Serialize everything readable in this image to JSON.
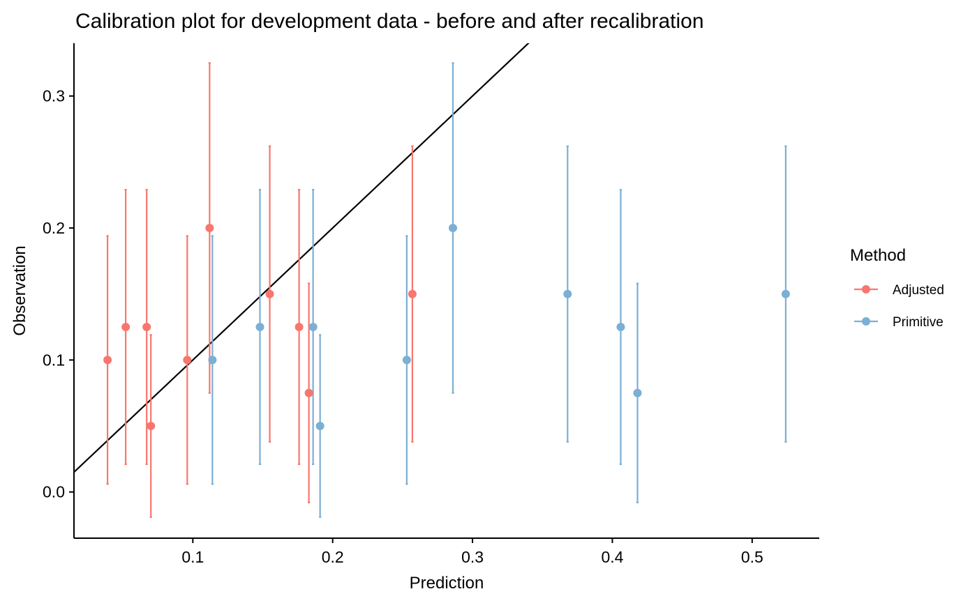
{
  "chart_data": {
    "type": "scatter",
    "title": "Calibration plot for development data - before and after recalibration",
    "xlabel": "Prediction",
    "ylabel": "Observation",
    "xlim": [
      0.015,
      0.548
    ],
    "ylim": [
      -0.035,
      0.34
    ],
    "x_ticks": [
      0.1,
      0.2,
      0.3,
      0.4,
      0.5
    ],
    "y_ticks": [
      0.0,
      0.1,
      0.2,
      0.3
    ],
    "x_tick_labels": [
      "0.1",
      "0.2",
      "0.3",
      "0.4",
      "0.5"
    ],
    "y_tick_labels": [
      "0.0",
      "0.1",
      "0.2",
      "0.3"
    ],
    "grid": false,
    "legend_position": "right",
    "legend_title": "Method",
    "reference_line": {
      "slope": 1,
      "intercept": 0,
      "color": "#000000"
    },
    "series": [
      {
        "name": "Adjusted",
        "color": "#F8766D",
        "points": [
          {
            "x": 0.039,
            "y": 0.1,
            "lo": 0.006,
            "hi": 0.194
          },
          {
            "x": 0.052,
            "y": 0.125,
            "lo": 0.021,
            "hi": 0.229
          },
          {
            "x": 0.067,
            "y": 0.125,
            "lo": 0.021,
            "hi": 0.229
          },
          {
            "x": 0.07,
            "y": 0.05,
            "lo": -0.019,
            "hi": 0.119
          },
          {
            "x": 0.096,
            "y": 0.1,
            "lo": 0.006,
            "hi": 0.194
          },
          {
            "x": 0.112,
            "y": 0.2,
            "lo": 0.075,
            "hi": 0.325
          },
          {
            "x": 0.155,
            "y": 0.15,
            "lo": 0.038,
            "hi": 0.262
          },
          {
            "x": 0.176,
            "y": 0.125,
            "lo": 0.021,
            "hi": 0.229
          },
          {
            "x": 0.183,
            "y": 0.075,
            "lo": -0.008,
            "hi": 0.158
          },
          {
            "x": 0.257,
            "y": 0.15,
            "lo": 0.038,
            "hi": 0.262
          }
        ]
      },
      {
        "name": "Primitive",
        "color": "#7BAFD4",
        "points": [
          {
            "x": 0.114,
            "y": 0.1,
            "lo": 0.006,
            "hi": 0.194
          },
          {
            "x": 0.148,
            "y": 0.125,
            "lo": 0.021,
            "hi": 0.229
          },
          {
            "x": 0.186,
            "y": 0.125,
            "lo": 0.021,
            "hi": 0.229
          },
          {
            "x": 0.191,
            "y": 0.05,
            "lo": -0.019,
            "hi": 0.119
          },
          {
            "x": 0.253,
            "y": 0.1,
            "lo": 0.006,
            "hi": 0.194
          },
          {
            "x": 0.286,
            "y": 0.2,
            "lo": 0.075,
            "hi": 0.325
          },
          {
            "x": 0.368,
            "y": 0.15,
            "lo": 0.038,
            "hi": 0.262
          },
          {
            "x": 0.406,
            "y": 0.125,
            "lo": 0.021,
            "hi": 0.229
          },
          {
            "x": 0.418,
            "y": 0.075,
            "lo": -0.008,
            "hi": 0.158
          },
          {
            "x": 0.524,
            "y": 0.15,
            "lo": 0.038,
            "hi": 0.262
          }
        ]
      }
    ]
  }
}
